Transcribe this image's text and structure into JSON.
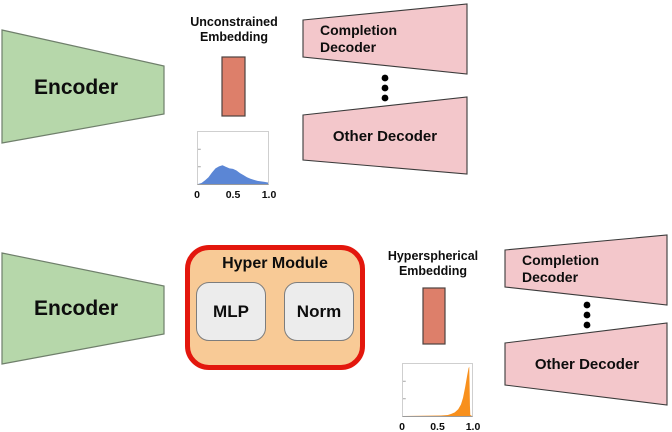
{
  "colors": {
    "encoder_fill": "#b6d7aa",
    "encoder_border": "#6f7f6b",
    "decoder_fill": "#f3c7cb",
    "decoder_border": "#3a3a3a",
    "embedding_fill": "#dd7f6a",
    "embedding_border": "#4d4240",
    "hyper_fill": "#f8ca96",
    "hyper_border": "#e3170d",
    "inner_box_fill": "#ececec",
    "hist_blue": "#5b86d5",
    "hist_orange": "#f8901d",
    "dots": "#000000"
  },
  "top": {
    "encoder_label": "Encoder",
    "embedding_label_line1": "Unconstrained",
    "embedding_label_line2": "Embedding",
    "completion_decoder_line1": "Completion",
    "completion_decoder_line2": "Decoder",
    "other_decoder_label": "Other Decoder",
    "hist_ticks": [
      "0",
      "0.5",
      "1.0"
    ]
  },
  "bottom": {
    "encoder_label": "Encoder",
    "hyper_module_title": "Hyper Module",
    "mlp_label": "MLP",
    "norm_label": "Norm",
    "embedding_label_line1": "Hyperspherical",
    "embedding_label_line2": "Embedding",
    "completion_decoder_line1": "Completion",
    "completion_decoder_line2": "Decoder",
    "other_decoder_label": "Other Decoder",
    "hist_ticks": [
      "0",
      "0.5",
      "1.0"
    ]
  },
  "chart_data": [
    {
      "type": "area",
      "title": "Unconstrained embedding value distribution",
      "color": "#5b86d5",
      "xlim": [
        0,
        1
      ],
      "ylim": [
        0,
        1
      ],
      "x_tick_labels": [
        "0",
        "0.5",
        "1.0"
      ],
      "points": [
        [
          0,
          0
        ],
        [
          0.05,
          0.02
        ],
        [
          0.1,
          0.07
        ],
        [
          0.15,
          0.13
        ],
        [
          0.2,
          0.22
        ],
        [
          0.25,
          0.3
        ],
        [
          0.3,
          0.34
        ],
        [
          0.35,
          0.36
        ],
        [
          0.4,
          0.33
        ],
        [
          0.45,
          0.3
        ],
        [
          0.5,
          0.29
        ],
        [
          0.55,
          0.26
        ],
        [
          0.6,
          0.21
        ],
        [
          0.65,
          0.17
        ],
        [
          0.7,
          0.13
        ],
        [
          0.75,
          0.1
        ],
        [
          0.8,
          0.08
        ],
        [
          0.85,
          0.06
        ],
        [
          0.9,
          0.05
        ],
        [
          0.95,
          0.04
        ],
        [
          1,
          0.03
        ]
      ]
    },
    {
      "type": "area",
      "title": "Hyperspherical embedding value distribution",
      "color": "#f8901d",
      "xlim": [
        0,
        1
      ],
      "ylim": [
        0,
        1
      ],
      "x_tick_labels": [
        "0",
        "0.5",
        "1.0"
      ],
      "points": [
        [
          0,
          0
        ],
        [
          0.55,
          0.01
        ],
        [
          0.65,
          0.02
        ],
        [
          0.7,
          0.04
        ],
        [
          0.75,
          0.07
        ],
        [
          0.8,
          0.13
        ],
        [
          0.84,
          0.22
        ],
        [
          0.87,
          0.35
        ],
        [
          0.9,
          0.55
        ],
        [
          0.93,
          0.78
        ],
        [
          0.95,
          0.92
        ],
        [
          0.96,
          0.95
        ],
        [
          0.965,
          0.6
        ],
        [
          0.97,
          0.2
        ],
        [
          0.975,
          0.02
        ],
        [
          1,
          0
        ]
      ]
    }
  ]
}
